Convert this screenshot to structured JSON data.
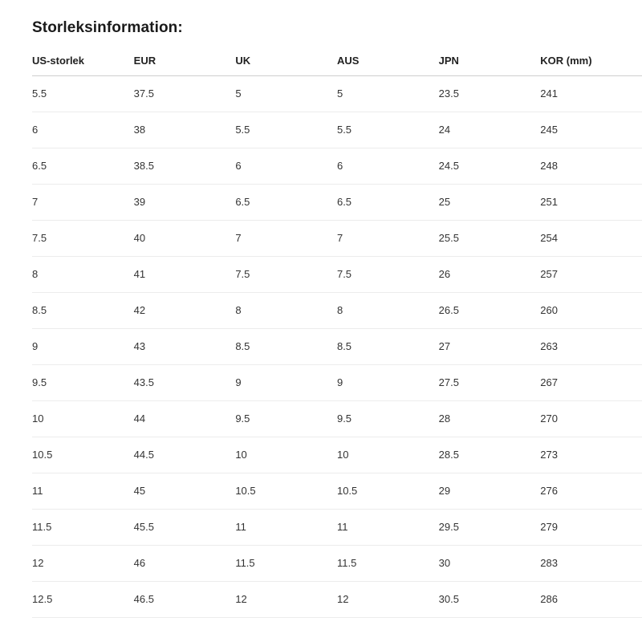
{
  "page": {
    "title": "Storleksinformation:"
  },
  "table": {
    "columns": [
      "US-storlek",
      "EUR",
      "UK",
      "AUS",
      "JPN",
      "KOR (mm)"
    ],
    "rows": [
      [
        "5.5",
        "37.5",
        "5",
        "5",
        "23.5",
        "241"
      ],
      [
        "6",
        "38",
        "5.5",
        "5.5",
        "24",
        "245"
      ],
      [
        "6.5",
        "38.5",
        "6",
        "6",
        "24.5",
        "248"
      ],
      [
        "7",
        "39",
        "6.5",
        "6.5",
        "25",
        "251"
      ],
      [
        "7.5",
        "40",
        "7",
        "7",
        "25.5",
        "254"
      ],
      [
        "8",
        "41",
        "7.5",
        "7.5",
        "26",
        "257"
      ],
      [
        "8.5",
        "42",
        "8",
        "8",
        "26.5",
        "260"
      ],
      [
        "9",
        "43",
        "8.5",
        "8.5",
        "27",
        "263"
      ],
      [
        "9.5",
        "43.5",
        "9",
        "9",
        "27.5",
        "267"
      ],
      [
        "10",
        "44",
        "9.5",
        "9.5",
        "28",
        "270"
      ],
      [
        "10.5",
        "44.5",
        "10",
        "10",
        "28.5",
        "273"
      ],
      [
        "11",
        "45",
        "10.5",
        "10.5",
        "29",
        "276"
      ],
      [
        "11.5",
        "45.5",
        "11",
        "11",
        "29.5",
        "279"
      ],
      [
        "12",
        "46",
        "11.5",
        "11.5",
        "30",
        "283"
      ],
      [
        "12.5",
        "46.5",
        "12",
        "12",
        "30.5",
        "286"
      ]
    ]
  },
  "colors": {
    "background": "#ffffff",
    "title_text": "#1a1a1a",
    "header_text": "#212121",
    "cell_text": "#333333",
    "header_border": "#cfcfcf",
    "row_border": "#ececec"
  }
}
